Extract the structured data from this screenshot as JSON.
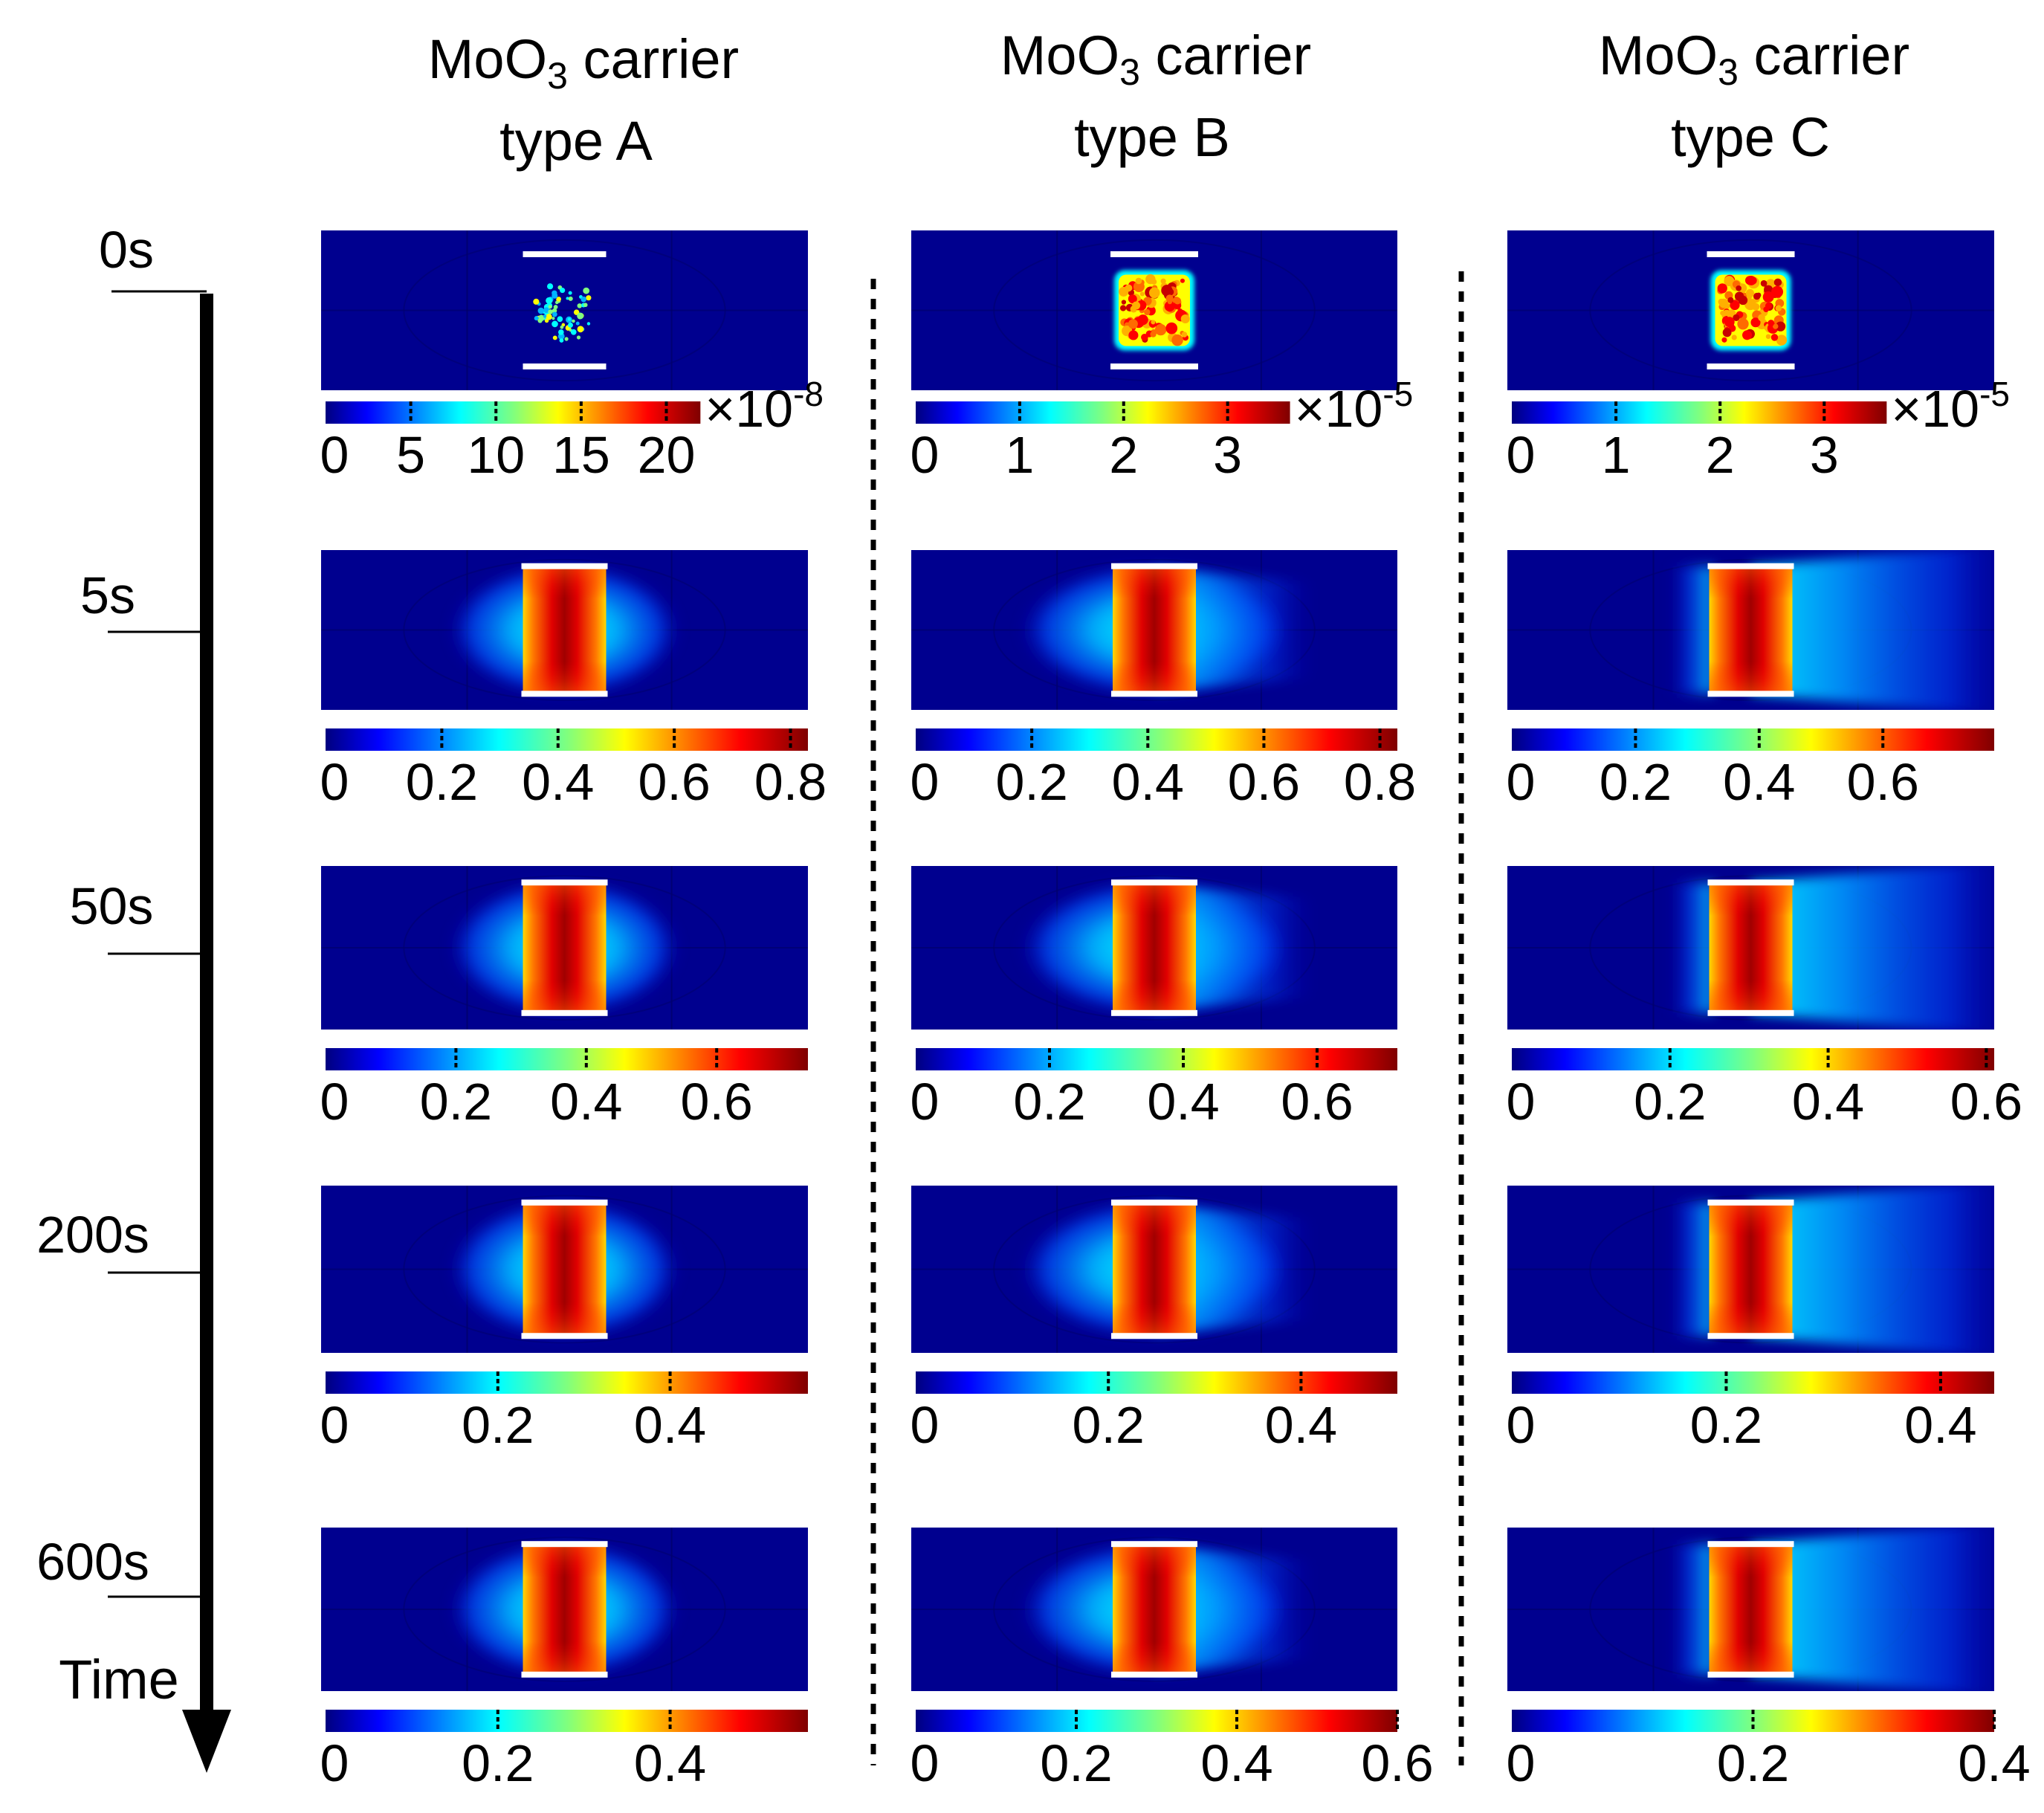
{
  "figure": {
    "columns": [
      {
        "id": "A",
        "title_main": "MoO",
        "title_sub": "3",
        "title_tail": " carrier",
        "title_line2": "type A"
      },
      {
        "id": "B",
        "title_main": "MoO",
        "title_sub": "3",
        "title_tail": " carrier",
        "title_line2": "type B"
      },
      {
        "id": "C",
        "title_main": "MoO",
        "title_sub": "3",
        "title_tail": " carrier",
        "title_line2": "type C"
      }
    ],
    "time_axis": {
      "label": "Time",
      "ticks": [
        "0s",
        "5s",
        "50s",
        "200s",
        "600s"
      ]
    },
    "panels": [
      [
        {
          "pattern": "speckle",
          "spread": 0.0,
          "colorbar": {
            "ticks": [
              "0",
              "5",
              "10",
              "15",
              "20"
            ],
            "tick_values": [
              0,
              5,
              10,
              15,
              20
            ],
            "max": 22,
            "multiplier_base": "×10",
            "multiplier_exp": "-8"
          }
        },
        {
          "pattern": "speckle-dense",
          "spread": 0.0,
          "colorbar": {
            "ticks": [
              "0",
              "1",
              "2",
              "3"
            ],
            "tick_values": [
              0,
              1,
              2,
              3
            ],
            "max": 3.6,
            "multiplier_base": "×10",
            "multiplier_exp": "-5"
          }
        },
        {
          "pattern": "speckle-dense",
          "spread": 0.0,
          "colorbar": {
            "ticks": [
              "0",
              "1",
              "2",
              "3"
            ],
            "tick_values": [
              0,
              1,
              2,
              3
            ],
            "max": 3.6,
            "multiplier_base": "×10",
            "multiplier_exp": "-5"
          }
        }
      ],
      [
        {
          "pattern": "diffuse",
          "spread": 0.3,
          "colorbar": {
            "ticks": [
              "0",
              "0.2",
              "0.4",
              "0.6",
              "0.8"
            ],
            "tick_values": [
              0,
              0.2,
              0.4,
              0.6,
              0.8
            ],
            "max": 0.83
          }
        },
        {
          "pattern": "diffuse",
          "spread": 0.6,
          "colorbar": {
            "ticks": [
              "0",
              "0.2",
              "0.4",
              "0.6",
              "0.8"
            ],
            "tick_values": [
              0,
              0.2,
              0.4,
              0.6,
              0.8
            ],
            "max": 0.83
          }
        },
        {
          "pattern": "diffuse-right",
          "spread": 1.0,
          "colorbar": {
            "ticks": [
              "0",
              "0.2",
              "0.4",
              "0.6"
            ],
            "tick_values": [
              0,
              0.2,
              0.4,
              0.6
            ],
            "max": 0.78
          }
        }
      ],
      [
        {
          "pattern": "diffuse",
          "spread": 0.3,
          "colorbar": {
            "ticks": [
              "0",
              "0.2",
              "0.4",
              "0.6"
            ],
            "tick_values": [
              0,
              0.2,
              0.4,
              0.6
            ],
            "max": 0.74
          }
        },
        {
          "pattern": "diffuse",
          "spread": 0.6,
          "colorbar": {
            "ticks": [
              "0",
              "0.2",
              "0.4",
              "0.6"
            ],
            "tick_values": [
              0,
              0.2,
              0.4,
              0.6
            ],
            "max": 0.72
          }
        },
        {
          "pattern": "diffuse-right",
          "spread": 1.0,
          "colorbar": {
            "ticks": [
              "0",
              "0.2",
              "0.4",
              "0.6"
            ],
            "tick_values": [
              0,
              0.2,
              0.4,
              0.6
            ],
            "max": 0.61
          }
        }
      ],
      [
        {
          "pattern": "diffuse",
          "spread": 0.3,
          "colorbar": {
            "ticks": [
              "0",
              "0.2",
              "0.4"
            ],
            "tick_values": [
              0,
              0.2,
              0.4
            ],
            "max": 0.56
          }
        },
        {
          "pattern": "diffuse",
          "spread": 0.6,
          "colorbar": {
            "ticks": [
              "0",
              "0.2",
              "0.4"
            ],
            "tick_values": [
              0,
              0.2,
              0.4
            ],
            "max": 0.5
          }
        },
        {
          "pattern": "diffuse-right",
          "spread": 1.0,
          "colorbar": {
            "ticks": [
              "0",
              "0.2",
              "0.4"
            ],
            "tick_values": [
              0,
              0.2,
              0.4
            ],
            "max": 0.45
          }
        }
      ],
      [
        {
          "pattern": "diffuse",
          "spread": 0.3,
          "colorbar": {
            "ticks": [
              "0",
              "0.2",
              "0.4"
            ],
            "tick_values": [
              0,
              0.2,
              0.4
            ],
            "max": 0.56
          }
        },
        {
          "pattern": "diffuse",
          "spread": 0.6,
          "colorbar": {
            "ticks": [
              "0",
              "0.2",
              "0.4",
              "0.6"
            ],
            "tick_values": [
              0,
              0.2,
              0.4,
              0.6
            ],
            "max": 0.6
          }
        },
        {
          "pattern": "diffuse-right",
          "spread": 1.0,
          "colorbar": {
            "ticks": [
              "0",
              "0.2",
              "0.4"
            ],
            "tick_values": [
              0,
              0.2,
              0.4
            ],
            "max": 0.4
          }
        }
      ]
    ]
  },
  "colors": {
    "background_field": "#00008f",
    "jet_stops": [
      "#00007f",
      "#0000ff",
      "#007fff",
      "#00ffff",
      "#7fff7f",
      "#ffff00",
      "#ff7f00",
      "#ff0000",
      "#7f0000"
    ],
    "carrier_bar": "#ffffff",
    "text": "#111111"
  }
}
